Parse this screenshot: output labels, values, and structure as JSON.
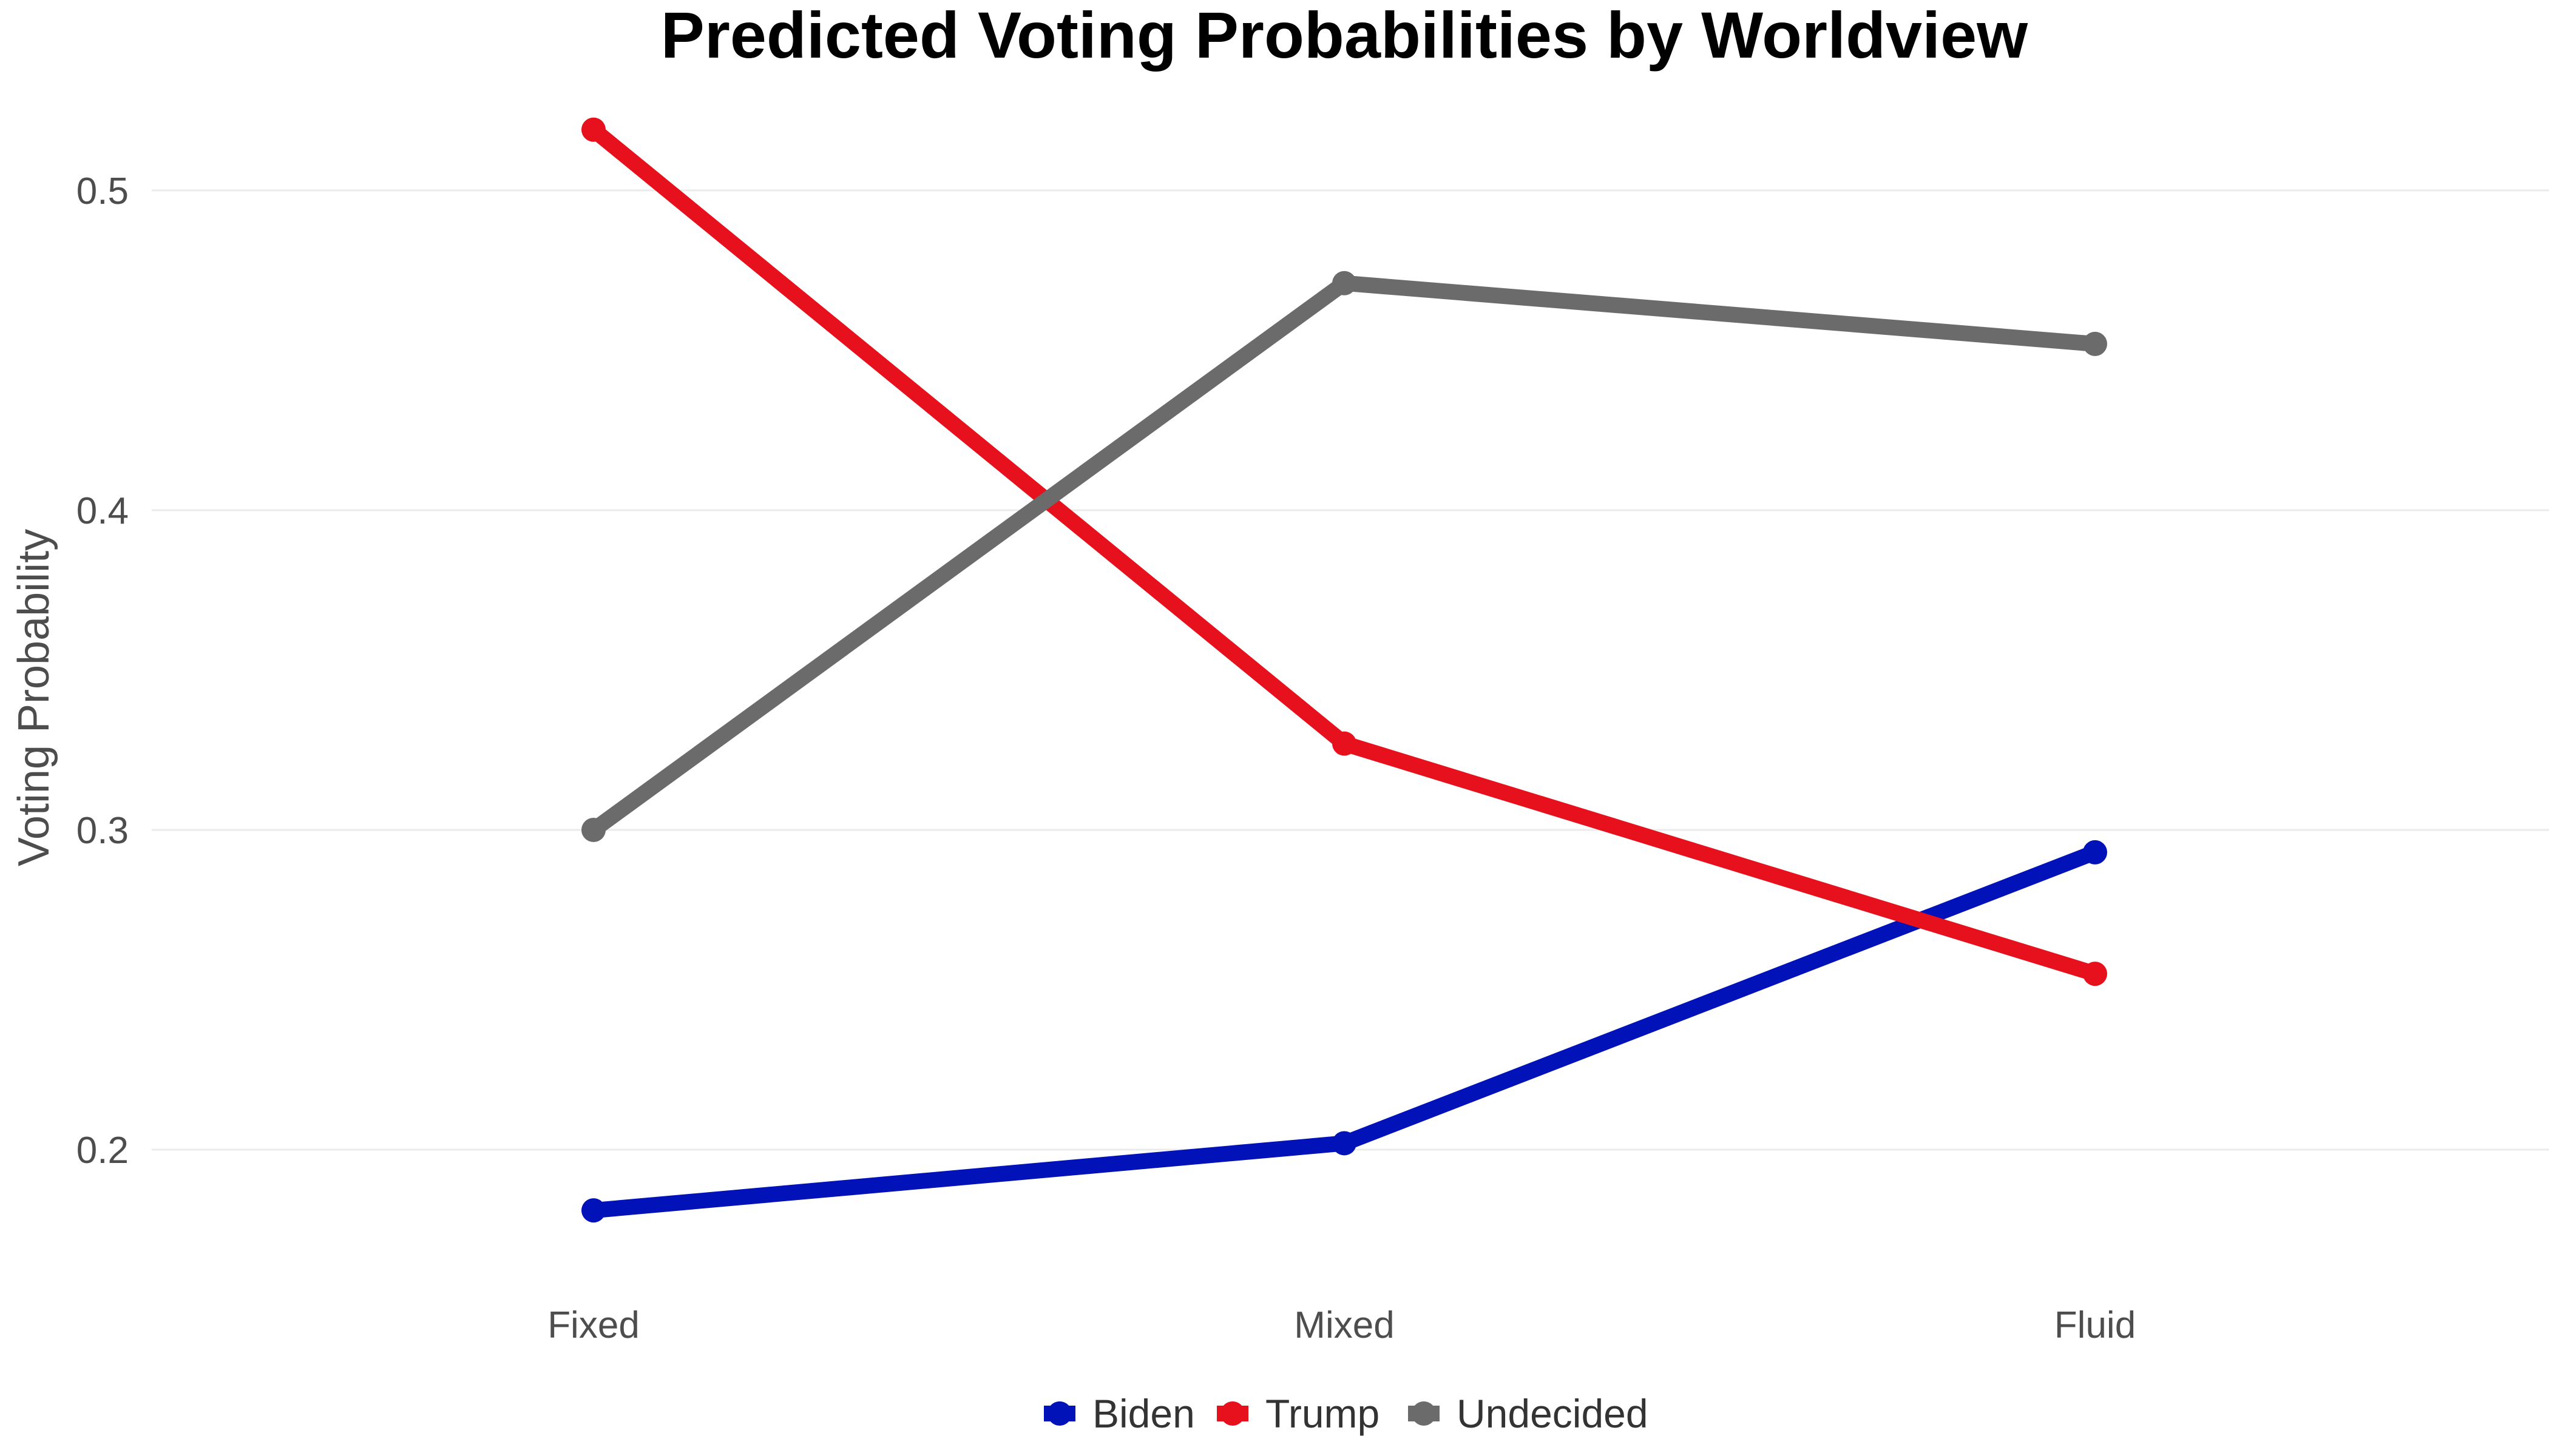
{
  "chart_data": {
    "type": "line",
    "title": "Predicted Voting Probabilities by Worldview",
    "xlabel": "",
    "ylabel": "Voting Probability",
    "categories": [
      "Fixed",
      "Mixed",
      "Fluid"
    ],
    "yticks": [
      0.2,
      0.3,
      0.4,
      0.5
    ],
    "ytick_labels": [
      "0.2",
      "0.3",
      "0.4",
      "0.5"
    ],
    "ylim": [
      0.163,
      0.533
    ],
    "grid": true,
    "legend_position": "bottom",
    "series": [
      {
        "name": "Biden",
        "color": "#0012b8",
        "values": [
          0.181,
          0.202,
          0.293
        ]
      },
      {
        "name": "Trump",
        "color": "#e6111c",
        "values": [
          0.519,
          0.327,
          0.255
        ]
      },
      {
        "name": "Undecided",
        "color": "#6b6b6b",
        "values": [
          0.3,
          0.471,
          0.452
        ]
      }
    ]
  }
}
